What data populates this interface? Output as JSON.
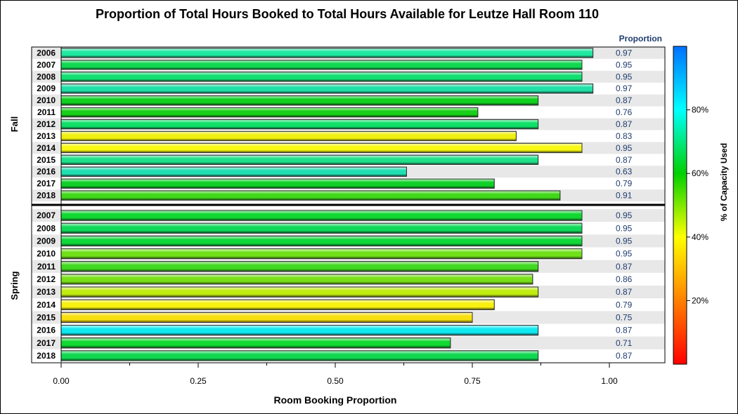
{
  "chart_data": {
    "type": "bar",
    "orientation": "horizontal",
    "title": "Proportion of Total Hours Booked to Total Hours Available for Leutze Hall Room 110",
    "xlabel": "Room Booking Proportion",
    "value_column_header": "Proportion",
    "xlim": [
      0,
      1.1
    ],
    "xticks": [
      "0.00",
      "0.25",
      "0.50",
      "0.75",
      "1.00"
    ],
    "colorbar": {
      "label": "% of Capacity Used",
      "ticks": [
        "20%",
        "40%",
        "60%",
        "80%"
      ],
      "range": [
        0,
        100
      ],
      "gradient": [
        "#ff0000",
        "#ff8000",
        "#ffff00",
        "#00d000",
        "#00ffff",
        "#0070ff"
      ]
    },
    "panels": [
      {
        "name": "Fall",
        "rows": [
          {
            "year": "2006",
            "value": 0.97,
            "label": "0.97",
            "capacity_pct": 70,
            "color": "#20e8a0"
          },
          {
            "year": "2007",
            "value": 0.95,
            "label": "0.95",
            "capacity_pct": 65,
            "color": "#10d850"
          },
          {
            "year": "2008",
            "value": 0.95,
            "label": "0.95",
            "capacity_pct": 68,
            "color": "#10e070"
          },
          {
            "year": "2009",
            "value": 0.97,
            "label": "0.97",
            "capacity_pct": 71,
            "color": "#20e0a8"
          },
          {
            "year": "2010",
            "value": 0.87,
            "label": "0.87",
            "capacity_pct": 63,
            "color": "#10d020"
          },
          {
            "year": "2011",
            "value": 0.76,
            "label": "0.76",
            "capacity_pct": 62,
            "color": "#18d018"
          },
          {
            "year": "2012",
            "value": 0.87,
            "label": "0.87",
            "capacity_pct": 67,
            "color": "#10e068"
          },
          {
            "year": "2013",
            "value": 0.83,
            "label": "0.83",
            "capacity_pct": 50,
            "color": "#f0f010"
          },
          {
            "year": "2014",
            "value": 0.95,
            "label": "0.95",
            "capacity_pct": 50,
            "color": "#f8f810"
          },
          {
            "year": "2015",
            "value": 0.87,
            "label": "0.87",
            "capacity_pct": 68,
            "color": "#20e088"
          },
          {
            "year": "2016",
            "value": 0.63,
            "label": "0.63",
            "capacity_pct": 72,
            "color": "#20e0b0"
          },
          {
            "year": "2017",
            "value": 0.79,
            "label": "0.79",
            "capacity_pct": 63,
            "color": "#10d028"
          },
          {
            "year": "2018",
            "value": 0.91,
            "label": "0.91",
            "capacity_pct": 61,
            "color": "#40d818"
          }
        ]
      },
      {
        "name": "Spring",
        "rows": [
          {
            "year": "2007",
            "value": 0.95,
            "label": "0.95",
            "capacity_pct": 63,
            "color": "#10d830"
          },
          {
            "year": "2008",
            "value": 0.95,
            "label": "0.95",
            "capacity_pct": 66,
            "color": "#10d858"
          },
          {
            "year": "2009",
            "value": 0.95,
            "label": "0.95",
            "capacity_pct": 64,
            "color": "#10d838"
          },
          {
            "year": "2010",
            "value": 0.95,
            "label": "0.95",
            "capacity_pct": 58,
            "color": "#70e018"
          },
          {
            "year": "2011",
            "value": 0.87,
            "label": "0.87",
            "capacity_pct": 60,
            "color": "#40d820"
          },
          {
            "year": "2012",
            "value": 0.86,
            "label": "0.86",
            "capacity_pct": 57,
            "color": "#78e018"
          },
          {
            "year": "2013",
            "value": 0.87,
            "label": "0.87",
            "capacity_pct": 54,
            "color": "#c0ec10"
          },
          {
            "year": "2014",
            "value": 0.79,
            "label": "0.79",
            "capacity_pct": 50,
            "color": "#f8f010"
          },
          {
            "year": "2015",
            "value": 0.75,
            "label": "0.75",
            "capacity_pct": 49,
            "color": "#f8e010"
          },
          {
            "year": "2016",
            "value": 0.87,
            "label": "0.87",
            "capacity_pct": 80,
            "color": "#10e8f0"
          },
          {
            "year": "2017",
            "value": 0.71,
            "label": "0.71",
            "capacity_pct": 64,
            "color": "#10d830"
          },
          {
            "year": "2018",
            "value": 0.87,
            "label": "0.87",
            "capacity_pct": 65,
            "color": "#10d850"
          }
        ]
      }
    ],
    "grid": false,
    "legend": "right"
  }
}
